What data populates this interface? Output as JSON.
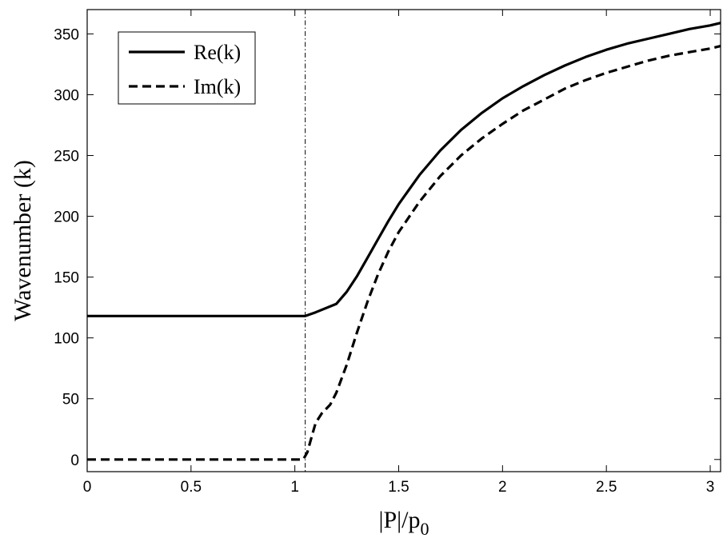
{
  "chart_data": {
    "type": "line",
    "xlabel_main": "|P|/p",
    "xlabel_sub": "0",
    "ylabel": "Wavenumber (k)",
    "xlim": [
      0,
      3.05
    ],
    "ylim": [
      -10,
      370
    ],
    "xticks": [
      0,
      0.5,
      1,
      1.5,
      2,
      2.5,
      3
    ],
    "xtick_labels": [
      "0",
      "0.5",
      "1",
      "1.5",
      "2",
      "2.5",
      "3"
    ],
    "yticks": [
      0,
      50,
      100,
      150,
      200,
      250,
      300,
      350
    ],
    "ytick_labels": [
      "0",
      "50",
      "100",
      "150",
      "200",
      "250",
      "300",
      "350"
    ],
    "grid": false,
    "legend_position": "top-left",
    "vline_x": 1.05,
    "series": [
      {
        "name": "Re(k)",
        "style": "solid",
        "color": "#000000",
        "x": [
          0,
          1.05,
          1.1,
          1.2,
          1.25,
          1.3,
          1.35,
          1.4,
          1.45,
          1.5,
          1.6,
          1.7,
          1.8,
          1.9,
          2.0,
          2.1,
          2.2,
          2.3,
          2.4,
          2.5,
          2.6,
          2.7,
          2.8,
          2.9,
          3.0,
          3.05
        ],
        "y": [
          118,
          118,
          121,
          128,
          138,
          151,
          166,
          181,
          196,
          210,
          234,
          254,
          271,
          285,
          297,
          307,
          316,
          324,
          331,
          337,
          342,
          346,
          350,
          354,
          357,
          359
        ]
      },
      {
        "name": "Im(k)",
        "style": "dashed",
        "color": "#000000",
        "x": [
          0,
          1.04,
          1.06,
          1.08,
          1.1,
          1.13,
          1.17,
          1.2,
          1.25,
          1.3,
          1.35,
          1.4,
          1.45,
          1.5,
          1.6,
          1.7,
          1.8,
          1.9,
          2.0,
          2.1,
          2.2,
          2.3,
          2.4,
          2.5,
          2.6,
          2.7,
          2.8,
          2.9,
          3.0,
          3.05
        ],
        "y": [
          0,
          0,
          6,
          18,
          30,
          38,
          45,
          55,
          78,
          105,
          130,
          152,
          171,
          187,
          212,
          233,
          250,
          264,
          276,
          287,
          296,
          305,
          312,
          318,
          323,
          328,
          332,
          335,
          338,
          340
        ]
      }
    ]
  }
}
